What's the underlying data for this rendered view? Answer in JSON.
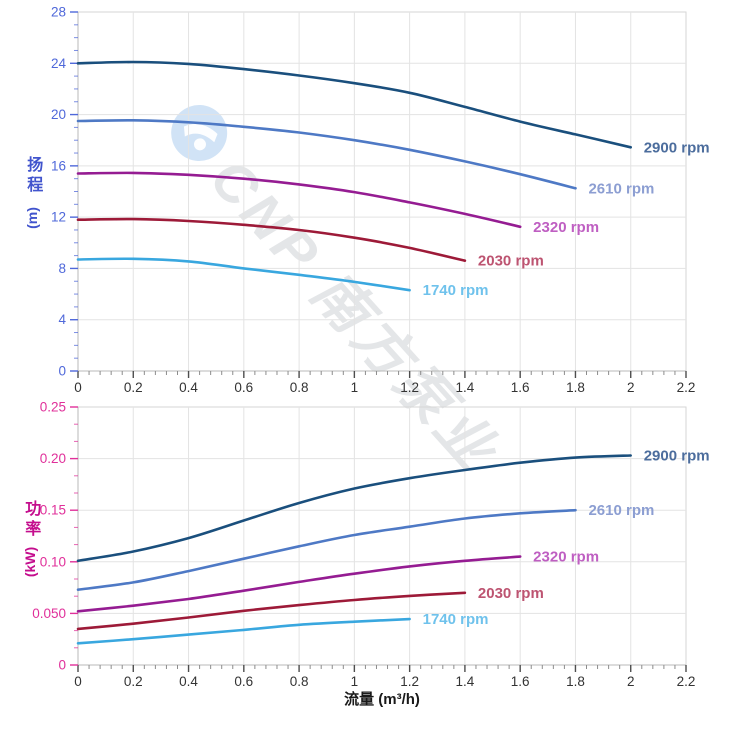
{
  "watermark": {
    "text": "CNP 南方泵业",
    "logo_icon": "cnp-logo"
  },
  "colors": {
    "grid": "#e3e3e3",
    "plot_border": "#d6d6d6",
    "axis_line": "#b9b9b9",
    "x_tick_major": "#4d4d4d",
    "x_tick_minor": "#8c8c8c",
    "x_tick_label": "#333333",
    "head_axis": "#4f68da",
    "head_axis_title": "#4154cd",
    "power_axis": "#e0309a",
    "power_axis_title": "#c40d8d",
    "watermark_logo_blue": "#8db8e8"
  },
  "chart_data": [
    {
      "type": "line",
      "title": "",
      "ylabel": "扬程",
      "ylabel_unit": "(m)",
      "xlabel": "",
      "xlim": [
        0,
        2.2
      ],
      "ylim": [
        0,
        28
      ],
      "grid": true,
      "legend_position": "curve-end-labels",
      "x_tick_values": [
        0,
        0.2,
        0.4,
        0.6,
        0.8,
        1,
        1.2,
        1.4,
        1.6,
        1.8,
        2,
        2.2
      ],
      "x_tick_labels": [
        "0",
        "0.2",
        "0.4",
        "0.6",
        "0.8",
        "1",
        "1.2",
        "1.4",
        "1.6",
        "1.8",
        "2",
        "2.2"
      ],
      "x_minor_divisions": 5,
      "y_tick_values": [
        0,
        4,
        8,
        12,
        16,
        20,
        24,
        28
      ],
      "y_tick_labels": [
        "0",
        "4",
        "8",
        "12",
        "16",
        "20",
        "24",
        "28"
      ],
      "y_minor_divisions": 4,
      "series": [
        {
          "name": "2900 rpm",
          "color": "#1a4f7d",
          "label_color": "#4c6d9d",
          "x": [
            0,
            0.2,
            0.4,
            0.6,
            0.8,
            1.0,
            1.2,
            1.4,
            1.6,
            1.8,
            2.0
          ],
          "values": [
            24.0,
            24.1,
            23.95,
            23.55,
            23.05,
            22.45,
            21.7,
            20.6,
            19.45,
            18.45,
            17.45
          ]
        },
        {
          "name": "2610 rpm",
          "color": "#4e79c5",
          "label_color": "#8c9ed2",
          "x": [
            0,
            0.2,
            0.4,
            0.6,
            0.8,
            1.0,
            1.2,
            1.4,
            1.6,
            1.8
          ],
          "values": [
            19.5,
            19.55,
            19.4,
            19.05,
            18.6,
            18.0,
            17.25,
            16.35,
            15.35,
            14.25
          ]
        },
        {
          "name": "2320 rpm",
          "color": "#951c92",
          "label_color": "#bf5fc2",
          "x": [
            0,
            0.2,
            0.4,
            0.6,
            0.8,
            1.0,
            1.2,
            1.4,
            1.6
          ],
          "values": [
            15.4,
            15.45,
            15.3,
            15.0,
            14.55,
            13.95,
            13.15,
            12.25,
            11.25
          ]
        },
        {
          "name": "2030 rpm",
          "color": "#9d1a38",
          "label_color": "#bd5471",
          "x": [
            0,
            0.2,
            0.4,
            0.6,
            0.8,
            1.0,
            1.2,
            1.4
          ],
          "values": [
            11.8,
            11.85,
            11.7,
            11.4,
            11.0,
            10.4,
            9.6,
            8.6
          ]
        },
        {
          "name": "1740 rpm",
          "color": "#39a7df",
          "label_color": "#6fc2ec",
          "x": [
            0,
            0.2,
            0.4,
            0.6,
            0.8,
            1.0,
            1.2
          ],
          "values": [
            8.7,
            8.75,
            8.55,
            8.0,
            7.5,
            6.95,
            6.3
          ]
        }
      ]
    },
    {
      "type": "line",
      "title": "",
      "ylabel": "功率",
      "ylabel_unit": "(kW)",
      "xlabel": "流量 (m³/h)",
      "xlim": [
        0,
        2.2
      ],
      "ylim": [
        0,
        0.25
      ],
      "grid": true,
      "legend_position": "curve-end-labels",
      "x_tick_values": [
        0,
        0.2,
        0.4,
        0.6,
        0.8,
        1,
        1.2,
        1.4,
        1.6,
        1.8,
        2,
        2.2
      ],
      "x_tick_labels": [
        "0",
        "0.2",
        "0.4",
        "0.6",
        "0.8",
        "1",
        "1.2",
        "1.4",
        "1.6",
        "1.8",
        "2",
        "2.2"
      ],
      "x_minor_divisions": 5,
      "y_tick_values": [
        0,
        0.05,
        0.1,
        0.15,
        0.2,
        0.25
      ],
      "y_tick_labels": [
        "0",
        "0.050",
        "0.10",
        "0.15",
        "0.20",
        "0.25"
      ],
      "y_minor_divisions": 3,
      "series": [
        {
          "name": "2900 rpm",
          "color": "#1a4f7d",
          "label_color": "#4c6d9d",
          "x": [
            0,
            0.2,
            0.4,
            0.6,
            0.8,
            1.0,
            1.2,
            1.4,
            1.6,
            1.8,
            2.0
          ],
          "values": [
            0.101,
            0.11,
            0.123,
            0.14,
            0.157,
            0.171,
            0.181,
            0.189,
            0.196,
            0.201,
            0.203
          ]
        },
        {
          "name": "2610 rpm",
          "color": "#4e79c5",
          "label_color": "#8c9ed2",
          "x": [
            0,
            0.2,
            0.4,
            0.6,
            0.8,
            1.0,
            1.2,
            1.4,
            1.6,
            1.8
          ],
          "values": [
            0.073,
            0.08,
            0.091,
            0.103,
            0.115,
            0.126,
            0.134,
            0.142,
            0.147,
            0.15
          ]
        },
        {
          "name": "2320 rpm",
          "color": "#951c92",
          "label_color": "#bf5fc2",
          "x": [
            0,
            0.2,
            0.4,
            0.6,
            0.8,
            1.0,
            1.2,
            1.4,
            1.6
          ],
          "values": [
            0.052,
            0.0575,
            0.064,
            0.072,
            0.0805,
            0.0885,
            0.0955,
            0.101,
            0.105
          ]
        },
        {
          "name": "2030 rpm",
          "color": "#9d1a38",
          "label_color": "#bd5471",
          "x": [
            0,
            0.2,
            0.4,
            0.6,
            0.8,
            1.0,
            1.2,
            1.4
          ],
          "values": [
            0.035,
            0.04,
            0.046,
            0.0525,
            0.058,
            0.063,
            0.067,
            0.07
          ]
        },
        {
          "name": "1740 rpm",
          "color": "#39a7df",
          "label_color": "#6fc2ec",
          "x": [
            0,
            0.2,
            0.4,
            0.6,
            0.8,
            1.0,
            1.2
          ],
          "values": [
            0.021,
            0.025,
            0.0295,
            0.034,
            0.039,
            0.042,
            0.0445
          ]
        }
      ]
    }
  ]
}
